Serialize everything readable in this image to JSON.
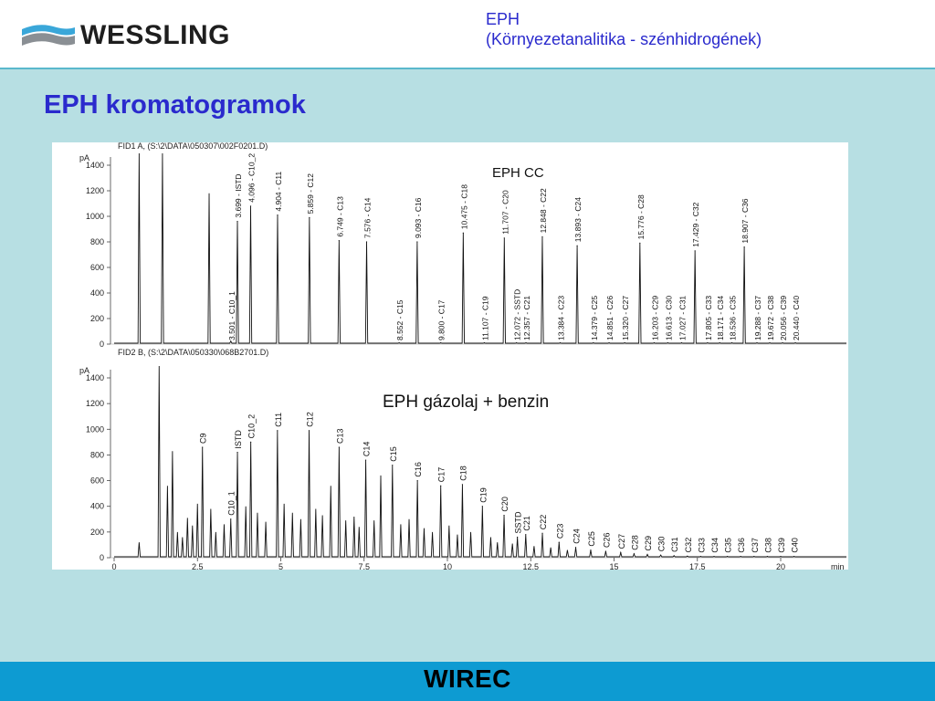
{
  "header": {
    "logo_text": "WESSLING",
    "title_line1": "EPH",
    "title_line2": "(Környezetanalitika - szénhidrogének)"
  },
  "page_title": "EPH kromatogramok",
  "footer": {
    "text": "WIREC"
  },
  "chart_data": [
    {
      "type": "line",
      "title": "EPH CC",
      "header": "FID1 A,  (S:\\2\\DATA\\050307\\002F0201.D)",
      "ylabel": "pA",
      "ylim": [
        0,
        1500
      ],
      "xlim": [
        0,
        22
      ],
      "yticks": [
        0,
        200,
        400,
        600,
        800,
        1000,
        1200,
        1400
      ],
      "peaks": [
        {
          "label": "3.501 - C10_1",
          "x": 3.501,
          "y": 22
        },
        {
          "label": "3.699 - ISTD",
          "x": 3.699,
          "y": 960
        },
        {
          "label": "4.096 - C10_2",
          "x": 4.096,
          "y": 1080
        },
        {
          "label": "4.904 - C11",
          "x": 4.904,
          "y": 1010
        },
        {
          "label": "5.859 - C12",
          "x": 5.859,
          "y": 990
        },
        {
          "label": "6.749 - C13",
          "x": 6.749,
          "y": 810
        },
        {
          "label": "7.576 - C14",
          "x": 7.576,
          "y": 800
        },
        {
          "label": "8.552 - C15",
          "x": 8.552,
          "y": 10
        },
        {
          "label": "9.093 - C16",
          "x": 9.093,
          "y": 800
        },
        {
          "label": "9.800 - C17",
          "x": 9.8,
          "y": 10
        },
        {
          "label": "10.475 - C18",
          "x": 10.475,
          "y": 870
        },
        {
          "label": "11.107 - C19",
          "x": 11.107,
          "y": 10
        },
        {
          "label": "11.707 - C20",
          "x": 11.707,
          "y": 830
        },
        {
          "label": "12.072 - SSTD",
          "x": 12.072,
          "y": 10
        },
        {
          "label": "12.357 - C21",
          "x": 12.357,
          "y": 10
        },
        {
          "label": "12.848 - C22",
          "x": 12.848,
          "y": 840
        },
        {
          "label": "13.384 - C23",
          "x": 13.384,
          "y": 10
        },
        {
          "label": "13.893 - C24",
          "x": 13.893,
          "y": 770
        },
        {
          "label": "14.379 - C25",
          "x": 14.379,
          "y": 10
        },
        {
          "label": "14.851 - C26",
          "x": 14.851,
          "y": 10
        },
        {
          "label": "15.320 - C27",
          "x": 15.32,
          "y": 10
        },
        {
          "label": "15.776 - C28",
          "x": 15.776,
          "y": 790
        },
        {
          "label": "16.203 - C29",
          "x": 16.203,
          "y": 10
        },
        {
          "label": "16.613 - C30",
          "x": 16.613,
          "y": 10
        },
        {
          "label": "17.027 - C31",
          "x": 17.027,
          "y": 10
        },
        {
          "label": "17.429 - C32",
          "x": 17.429,
          "y": 730
        },
        {
          "label": "17.805 - C33",
          "x": 17.805,
          "y": 10
        },
        {
          "label": "18.171 - C34",
          "x": 18.171,
          "y": 10
        },
        {
          "label": "18.536 - C35",
          "x": 18.536,
          "y": 10
        },
        {
          "label": "18.907 - C36",
          "x": 18.907,
          "y": 760
        },
        {
          "label": "19.288 - C37",
          "x": 19.288,
          "y": 10
        },
        {
          "label": "19.672 - C38",
          "x": 19.672,
          "y": 10
        },
        {
          "label": "20.056 - C39",
          "x": 20.056,
          "y": 10
        },
        {
          "label": "20.440 - C40",
          "x": 20.44,
          "y": 10
        }
      ],
      "solvent_peaks": [
        {
          "x": 0.75,
          "y": 1500
        },
        {
          "x": 1.45,
          "y": 1500
        },
        {
          "x": 2.85,
          "y": 1180
        }
      ]
    },
    {
      "type": "line",
      "title": "EPH gázolaj + benzin",
      "header": "FID2 B,  (S:\\2\\DATA\\050330\\068B2701.D)",
      "ylabel": "pA",
      "xlabel": "min",
      "ylim": [
        0,
        1500
      ],
      "xlim": [
        0,
        22
      ],
      "yticks": [
        0,
        200,
        400,
        600,
        800,
        1000,
        1200,
        1400
      ],
      "xticks": [
        0,
        2.5,
        5,
        7.5,
        10,
        12.5,
        15,
        17.5,
        20
      ],
      "xtick_labels": [
        "0",
        "2.5",
        "5",
        "7.5",
        "10",
        "12.5",
        "15",
        "17.5",
        "20"
      ],
      "peaks": [
        {
          "label": "C9",
          "x": 2.65,
          "y": 860
        },
        {
          "label": "C10_1",
          "x": 3.5,
          "y": 300
        },
        {
          "label": "ISTD",
          "x": 3.7,
          "y": 820
        },
        {
          "label": "C10_2",
          "x": 4.1,
          "y": 900
        },
        {
          "label": "C11",
          "x": 4.9,
          "y": 990
        },
        {
          "label": "C12",
          "x": 5.85,
          "y": 990
        },
        {
          "label": "C13",
          "x": 6.75,
          "y": 860
        },
        {
          "label": "C14",
          "x": 7.55,
          "y": 760
        },
        {
          "label": "C15",
          "x": 8.35,
          "y": 720
        },
        {
          "label": "C16",
          "x": 9.1,
          "y": 600
        },
        {
          "label": "C17",
          "x": 9.8,
          "y": 560
        },
        {
          "label": "C18",
          "x": 10.45,
          "y": 570
        },
        {
          "label": "C19",
          "x": 11.05,
          "y": 400
        },
        {
          "label": "C20",
          "x": 11.7,
          "y": 330
        },
        {
          "label": "SSTD",
          "x": 12.1,
          "y": 160
        },
        {
          "label": "C21",
          "x": 12.35,
          "y": 180
        },
        {
          "label": "C22",
          "x": 12.85,
          "y": 190
        },
        {
          "label": "C23",
          "x": 13.35,
          "y": 120
        },
        {
          "label": "C24",
          "x": 13.85,
          "y": 80
        },
        {
          "label": "C25",
          "x": 14.3,
          "y": 60
        },
        {
          "label": "C26",
          "x": 14.75,
          "y": 50
        },
        {
          "label": "C27",
          "x": 15.2,
          "y": 40
        },
        {
          "label": "C28",
          "x": 15.6,
          "y": 30
        },
        {
          "label": "C29",
          "x": 16.0,
          "y": 25
        },
        {
          "label": "C30",
          "x": 16.4,
          "y": 20
        },
        {
          "label": "C31",
          "x": 16.8,
          "y": 15
        },
        {
          "label": "C32",
          "x": 17.2,
          "y": 12
        },
        {
          "label": "C33",
          "x": 17.6,
          "y": 10
        },
        {
          "label": "C34",
          "x": 18.0,
          "y": 10
        },
        {
          "label": "C35",
          "x": 18.4,
          "y": 10
        },
        {
          "label": "C36",
          "x": 18.8,
          "y": 10
        },
        {
          "label": "C37",
          "x": 19.2,
          "y": 10
        },
        {
          "label": "C38",
          "x": 19.6,
          "y": 10
        },
        {
          "label": "C39",
          "x": 20.0,
          "y": 10
        },
        {
          "label": "C40",
          "x": 20.4,
          "y": 10
        }
      ],
      "solvent_peaks": [
        {
          "x": 0.75,
          "y": 120
        },
        {
          "x": 1.35,
          "y": 1500
        },
        {
          "x": 1.6,
          "y": 560
        },
        {
          "x": 1.75,
          "y": 830
        }
      ],
      "minor_peaks": [
        {
          "x": 1.9,
          "y": 200
        },
        {
          "x": 2.05,
          "y": 160
        },
        {
          "x": 2.2,
          "y": 310
        },
        {
          "x": 2.35,
          "y": 250
        },
        {
          "x": 2.5,
          "y": 420
        },
        {
          "x": 2.9,
          "y": 380
        },
        {
          "x": 3.05,
          "y": 200
        },
        {
          "x": 3.3,
          "y": 260
        },
        {
          "x": 3.95,
          "y": 400
        },
        {
          "x": 4.3,
          "y": 350
        },
        {
          "x": 4.55,
          "y": 280
        },
        {
          "x": 5.1,
          "y": 420
        },
        {
          "x": 5.35,
          "y": 350
        },
        {
          "x": 5.6,
          "y": 300
        },
        {
          "x": 6.05,
          "y": 380
        },
        {
          "x": 6.25,
          "y": 330
        },
        {
          "x": 6.5,
          "y": 560
        },
        {
          "x": 6.95,
          "y": 290
        },
        {
          "x": 7.2,
          "y": 320
        },
        {
          "x": 7.35,
          "y": 240
        },
        {
          "x": 7.8,
          "y": 290
        },
        {
          "x": 8.0,
          "y": 640
        },
        {
          "x": 8.6,
          "y": 260
        },
        {
          "x": 8.85,
          "y": 300
        },
        {
          "x": 9.3,
          "y": 230
        },
        {
          "x": 9.55,
          "y": 200
        },
        {
          "x": 10.05,
          "y": 250
        },
        {
          "x": 10.3,
          "y": 180
        },
        {
          "x": 10.7,
          "y": 200
        },
        {
          "x": 11.3,
          "y": 160
        },
        {
          "x": 11.5,
          "y": 120
        },
        {
          "x": 11.95,
          "y": 110
        },
        {
          "x": 12.6,
          "y": 90
        },
        {
          "x": 13.1,
          "y": 80
        },
        {
          "x": 13.6,
          "y": 60
        }
      ]
    }
  ]
}
